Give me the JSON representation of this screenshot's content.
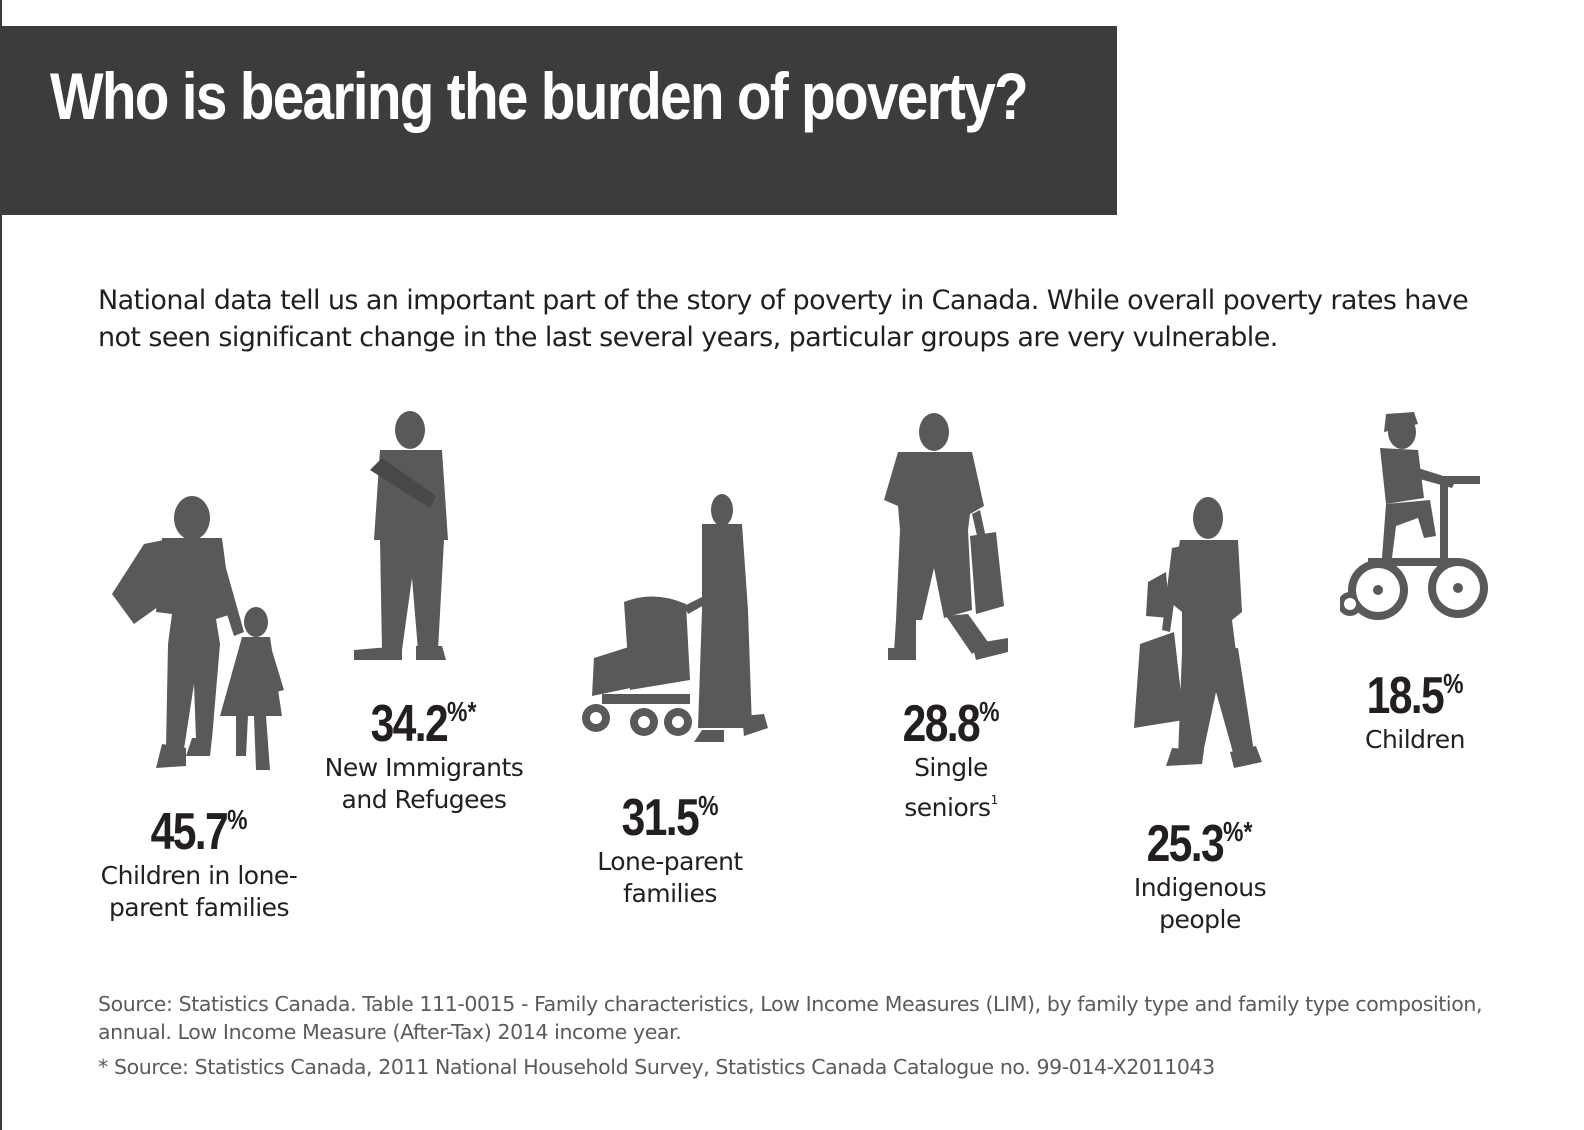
{
  "title": "Who is bearing the burden of poverty?",
  "intro": "National data tell us an important part of the story of poverty in Canada. While overall poverty rates have not seen significant change in the last several years, particular groups are very vulnerable.",
  "stats": [
    {
      "value": "45.7",
      "unit": "%",
      "mark": "",
      "label": "Children in lone-\nparent families",
      "sup": "",
      "icon": "mother-child-walking-icon"
    },
    {
      "value": "34.2",
      "unit": "%",
      "mark": "*",
      "label": "New Immigrants\nand Refugees",
      "sup": "",
      "icon": "standing-man-icon"
    },
    {
      "value": "31.5",
      "unit": "%",
      "mark": "",
      "label": "Lone-parent\nfamilies",
      "sup": "",
      "icon": "woman-stroller-icon"
    },
    {
      "value": "28.8",
      "unit": "%",
      "mark": "",
      "label": "Single\nseniors",
      "sup": "1",
      "icon": "senior-man-walking-icon"
    },
    {
      "value": "25.3",
      "unit": "%",
      "mark": "*",
      "label": "Indigenous\npeople",
      "sup": "",
      "icon": "woman-walking-bags-icon"
    },
    {
      "value": "18.5",
      "unit": "%",
      "mark": "",
      "label": "Children",
      "sup": "",
      "icon": "child-bicycle-icon"
    }
  ],
  "sources": {
    "primary": "Source: Statistics Canada. Table 111-0015 - Family characteristics, Low Income Measures (LIM), by family type and family type composition, annual. Low Income Measure (After-Tax) 2014 income year.",
    "secondary": "* Source: Statistics Canada, 2011 National Household Survey, Statistics Canada Catalogue no. 99-014-X2011043"
  },
  "colors": {
    "band": "#3e3b3b",
    "figure": "#5b5859",
    "text": "#231f20",
    "source": "#5b5b5b"
  }
}
